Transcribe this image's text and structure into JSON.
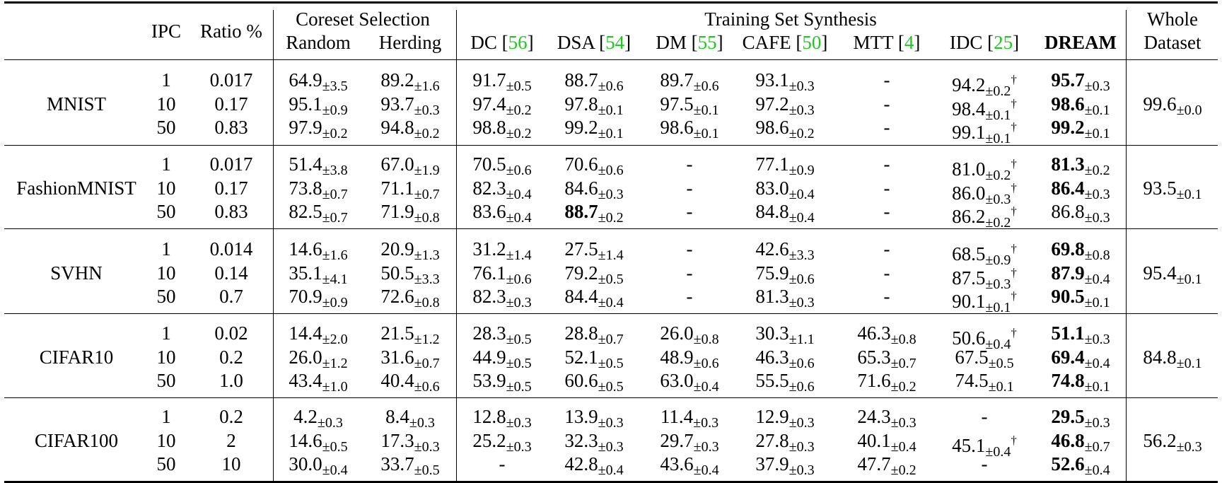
{
  "header": {
    "ipc": "IPC",
    "ratio": "Ratio %",
    "coreset_group": "Coreset Selection",
    "random": "Random",
    "herding": "Herding",
    "synthesis_group": "Training Set Synthesis",
    "dc": "DC",
    "dc_cite": "56",
    "dsa": "DSA",
    "dsa_cite": "54",
    "dm": "DM",
    "dm_cite": "55",
    "cafe": "CAFE",
    "cafe_cite": "50",
    "mtt": "MTT",
    "mtt_cite": "4",
    "idc": "IDC",
    "idc_cite": "25",
    "dream": "DREAM",
    "whole_line1": "Whole",
    "whole_line2": "Dataset",
    "open_bracket": "[",
    "close_bracket": "]"
  },
  "datasets": [
    {
      "name": "MNIST",
      "whole": {
        "m": "99.6",
        "s": "0.0"
      },
      "rows": [
        {
          "ipc": "1",
          "ratio": "0.017",
          "cells": [
            {
              "m": "64.9",
              "s": "3.5"
            },
            {
              "m": "89.2",
              "s": "1.6"
            },
            {
              "m": "91.7",
              "s": "0.5"
            },
            {
              "m": "88.7",
              "s": "0.6"
            },
            {
              "m": "89.7",
              "s": "0.6"
            },
            {
              "m": "93.1",
              "s": "0.3"
            },
            {
              "m": "-"
            },
            {
              "m": "94.2",
              "s": "0.2",
              "dag": "†"
            },
            {
              "m": "95.7",
              "s": "0.3",
              "b": true
            }
          ]
        },
        {
          "ipc": "10",
          "ratio": "0.17",
          "cells": [
            {
              "m": "95.1",
              "s": "0.9"
            },
            {
              "m": "93.7",
              "s": "0.3"
            },
            {
              "m": "97.4",
              "s": "0.2"
            },
            {
              "m": "97.8",
              "s": "0.1"
            },
            {
              "m": "97.5",
              "s": "0.1"
            },
            {
              "m": "97.2",
              "s": "0.3"
            },
            {
              "m": "-"
            },
            {
              "m": "98.4",
              "s": "0.1",
              "dag": "†"
            },
            {
              "m": "98.6",
              "s": "0.1",
              "b": true
            }
          ]
        },
        {
          "ipc": "50",
          "ratio": "0.83",
          "cells": [
            {
              "m": "97.9",
              "s": "0.2"
            },
            {
              "m": "94.8",
              "s": "0.2"
            },
            {
              "m": "98.8",
              "s": "0.2"
            },
            {
              "m": "99.2",
              "s": "0.1"
            },
            {
              "m": "98.6",
              "s": "0.1"
            },
            {
              "m": "98.6",
              "s": "0.2"
            },
            {
              "m": "-"
            },
            {
              "m": "99.1",
              "s": "0.1",
              "dag": "†"
            },
            {
              "m": "99.2",
              "s": "0.1",
              "b": true
            }
          ]
        }
      ]
    },
    {
      "name": "FashionMNIST",
      "whole": {
        "m": "93.5",
        "s": "0.1"
      },
      "rows": [
        {
          "ipc": "1",
          "ratio": "0.017",
          "cells": [
            {
              "m": "51.4",
              "s": "3.8"
            },
            {
              "m": "67.0",
              "s": "1.9"
            },
            {
              "m": "70.5",
              "s": "0.6"
            },
            {
              "m": "70.6",
              "s": "0.6"
            },
            {
              "m": "-"
            },
            {
              "m": "77.1",
              "s": "0.9"
            },
            {
              "m": "-"
            },
            {
              "m": "81.0",
              "s": "0.2",
              "dag": "†"
            },
            {
              "m": "81.3",
              "s": "0.2",
              "b": true
            }
          ]
        },
        {
          "ipc": "10",
          "ratio": "0.17",
          "cells": [
            {
              "m": "73.8",
              "s": "0.7"
            },
            {
              "m": "71.1",
              "s": "0.7"
            },
            {
              "m": "82.3",
              "s": "0.4"
            },
            {
              "m": "84.6",
              "s": "0.3"
            },
            {
              "m": "-"
            },
            {
              "m": "83.0",
              "s": "0.4"
            },
            {
              "m": "-"
            },
            {
              "m": "86.0",
              "s": "0.3",
              "dag": "†"
            },
            {
              "m": "86.4",
              "s": "0.3",
              "b": true
            }
          ]
        },
        {
          "ipc": "50",
          "ratio": "0.83",
          "cells": [
            {
              "m": "82.5",
              "s": "0.7"
            },
            {
              "m": "71.9",
              "s": "0.8"
            },
            {
              "m": "83.6",
              "s": "0.4"
            },
            {
              "m": "88.7",
              "s": "0.2",
              "b": true
            },
            {
              "m": "-"
            },
            {
              "m": "84.8",
              "s": "0.4"
            },
            {
              "m": "-"
            },
            {
              "m": "86.2",
              "s": "0.2",
              "dag": "†"
            },
            {
              "m": "86.8",
              "s": "0.3"
            }
          ]
        }
      ]
    },
    {
      "name": "SVHN",
      "whole": {
        "m": "95.4",
        "s": "0.1"
      },
      "rows": [
        {
          "ipc": "1",
          "ratio": "0.014",
          "cells": [
            {
              "m": "14.6",
              "s": "1.6"
            },
            {
              "m": "20.9",
              "s": "1.3"
            },
            {
              "m": "31.2",
              "s": "1.4"
            },
            {
              "m": "27.5",
              "s": "1.4"
            },
            {
              "m": "-"
            },
            {
              "m": "42.6",
              "s": "3.3"
            },
            {
              "m": "-"
            },
            {
              "m": "68.5",
              "s": "0.9",
              "dag": "†"
            },
            {
              "m": "69.8",
              "s": "0.8",
              "b": true
            }
          ]
        },
        {
          "ipc": "10",
          "ratio": "0.14",
          "cells": [
            {
              "m": "35.1",
              "s": "4.1"
            },
            {
              "m": "50.5",
              "s": "3.3"
            },
            {
              "m": "76.1",
              "s": "0.6"
            },
            {
              "m": "79.2",
              "s": "0.5"
            },
            {
              "m": "-"
            },
            {
              "m": "75.9",
              "s": "0.6"
            },
            {
              "m": "-"
            },
            {
              "m": "87.5",
              "s": "0.3",
              "dag": "†"
            },
            {
              "m": "87.9",
              "s": "0.4",
              "b": true
            }
          ]
        },
        {
          "ipc": "50",
          "ratio": "0.7",
          "cells": [
            {
              "m": "70.9",
              "s": "0.9"
            },
            {
              "m": "72.6",
              "s": "0.8"
            },
            {
              "m": "82.3",
              "s": "0.3"
            },
            {
              "m": "84.4",
              "s": "0.4"
            },
            {
              "m": "-"
            },
            {
              "m": "81.3",
              "s": "0.3"
            },
            {
              "m": "-"
            },
            {
              "m": "90.1",
              "s": "0.1",
              "dag": "†"
            },
            {
              "m": "90.5",
              "s": "0.1",
              "b": true
            }
          ]
        }
      ]
    },
    {
      "name": "CIFAR10",
      "whole": {
        "m": "84.8",
        "s": "0.1"
      },
      "rows": [
        {
          "ipc": "1",
          "ratio": "0.02",
          "cells": [
            {
              "m": "14.4",
              "s": "2.0"
            },
            {
              "m": "21.5",
              "s": "1.2"
            },
            {
              "m": "28.3",
              "s": "0.5"
            },
            {
              "m": "28.8",
              "s": "0.7"
            },
            {
              "m": "26.0",
              "s": "0.8"
            },
            {
              "m": "30.3",
              "s": "1.1"
            },
            {
              "m": "46.3",
              "s": "0.8"
            },
            {
              "m": "50.6",
              "s": "0.4",
              "dag": "†"
            },
            {
              "m": "51.1",
              "s": "0.3",
              "b": true
            }
          ]
        },
        {
          "ipc": "10",
          "ratio": "0.2",
          "cells": [
            {
              "m": "26.0",
              "s": "1.2"
            },
            {
              "m": "31.6",
              "s": "0.7"
            },
            {
              "m": "44.9",
              "s": "0.5"
            },
            {
              "m": "52.1",
              "s": "0.5"
            },
            {
              "m": "48.9",
              "s": "0.6"
            },
            {
              "m": "46.3",
              "s": "0.6"
            },
            {
              "m": "65.3",
              "s": "0.7"
            },
            {
              "m": "67.5",
              "s": "0.5"
            },
            {
              "m": "69.4",
              "s": "0.4",
              "b": true
            }
          ]
        },
        {
          "ipc": "50",
          "ratio": "1.0",
          "cells": [
            {
              "m": "43.4",
              "s": "1.0"
            },
            {
              "m": "40.4",
              "s": "0.6"
            },
            {
              "m": "53.9",
              "s": "0.5"
            },
            {
              "m": "60.6",
              "s": "0.5"
            },
            {
              "m": "63.0",
              "s": "0.4"
            },
            {
              "m": "55.5",
              "s": "0.6"
            },
            {
              "m": "71.6",
              "s": "0.2"
            },
            {
              "m": "74.5",
              "s": "0.1"
            },
            {
              "m": "74.8",
              "s": "0.1",
              "b": true
            }
          ]
        }
      ]
    },
    {
      "name": "CIFAR100",
      "whole": {
        "m": "56.2",
        "s": "0.3"
      },
      "rows": [
        {
          "ipc": "1",
          "ratio": "0.2",
          "cells": [
            {
              "m": "4.2",
              "s": "0.3"
            },
            {
              "m": "8.4",
              "s": "0.3"
            },
            {
              "m": "12.8",
              "s": "0.3"
            },
            {
              "m": "13.9",
              "s": "0.3"
            },
            {
              "m": "11.4",
              "s": "0.3"
            },
            {
              "m": "12.9",
              "s": "0.3"
            },
            {
              "m": "24.3",
              "s": "0.3"
            },
            {
              "m": "-"
            },
            {
              "m": "29.5",
              "s": "0.3",
              "b": true
            }
          ]
        },
        {
          "ipc": "10",
          "ratio": "2",
          "cells": [
            {
              "m": "14.6",
              "s": "0.5"
            },
            {
              "m": "17.3",
              "s": "0.3"
            },
            {
              "m": "25.2",
              "s": "0.3"
            },
            {
              "m": "32.3",
              "s": "0.3"
            },
            {
              "m": "29.7",
              "s": "0.3"
            },
            {
              "m": "27.8",
              "s": "0.3"
            },
            {
              "m": "40.1",
              "s": "0.4"
            },
            {
              "m": "45.1",
              "s": "0.4",
              "dag": "†"
            },
            {
              "m": "46.8",
              "s": "0.7",
              "b": true
            }
          ]
        },
        {
          "ipc": "50",
          "ratio": "10",
          "cells": [
            {
              "m": "30.0",
              "s": "0.4"
            },
            {
              "m": "33.7",
              "s": "0.5"
            },
            {
              "m": "-"
            },
            {
              "m": "42.8",
              "s": "0.4"
            },
            {
              "m": "43.6",
              "s": "0.4"
            },
            {
              "m": "37.9",
              "s": "0.3"
            },
            {
              "m": "47.7",
              "s": "0.2"
            },
            {
              "m": "-"
            },
            {
              "m": "52.6",
              "s": "0.4",
              "b": true
            }
          ]
        }
      ]
    }
  ]
}
